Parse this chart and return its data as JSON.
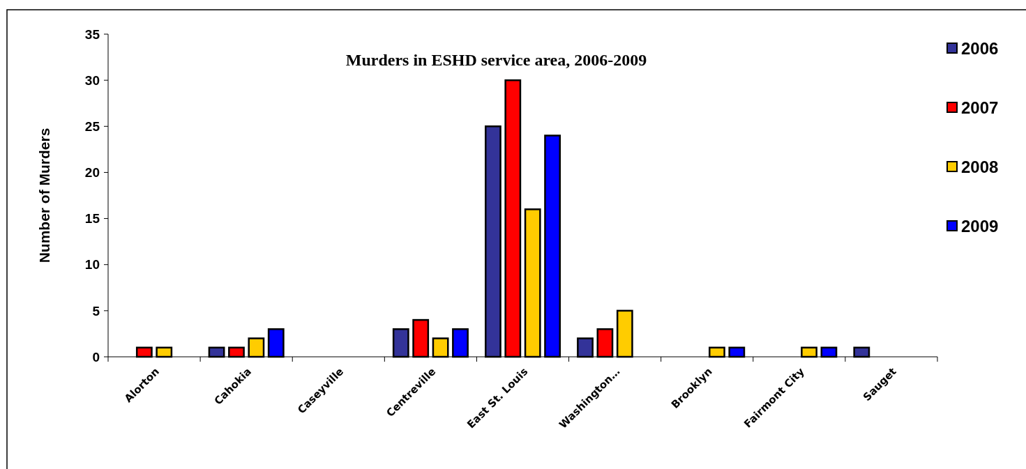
{
  "chart_data": {
    "type": "bar",
    "title": "Murders in ESHD service area, 2006-2009",
    "ylabel": "Number of Murders",
    "categories": [
      "Alorton",
      "Cahokia",
      "Caseyville",
      "Centreville",
      "East St. Louis",
      "Washington…",
      "Brooklyn",
      "Fairmont City",
      "Sauget"
    ],
    "series": [
      {
        "name": "2006",
        "color": "#333399",
        "values": [
          0,
          1,
          0,
          3,
          25,
          2,
          0,
          0,
          1
        ]
      },
      {
        "name": "2007",
        "color": "#ff0000",
        "values": [
          1,
          1,
          0,
          4,
          30,
          3,
          0,
          0,
          0
        ]
      },
      {
        "name": "2008",
        "color": "#ffcc00",
        "values": [
          1,
          2,
          0,
          2,
          16,
          5,
          1,
          1,
          0
        ]
      },
      {
        "name": "2009",
        "color": "#0000ff",
        "values": [
          0,
          3,
          0,
          3,
          24,
          0,
          1,
          1,
          0
        ]
      }
    ],
    "ylim": [
      0,
      35
    ],
    "yticks": [
      0,
      5,
      10,
      15,
      20,
      25,
      30,
      35
    ],
    "grid": false,
    "legend": "right"
  }
}
